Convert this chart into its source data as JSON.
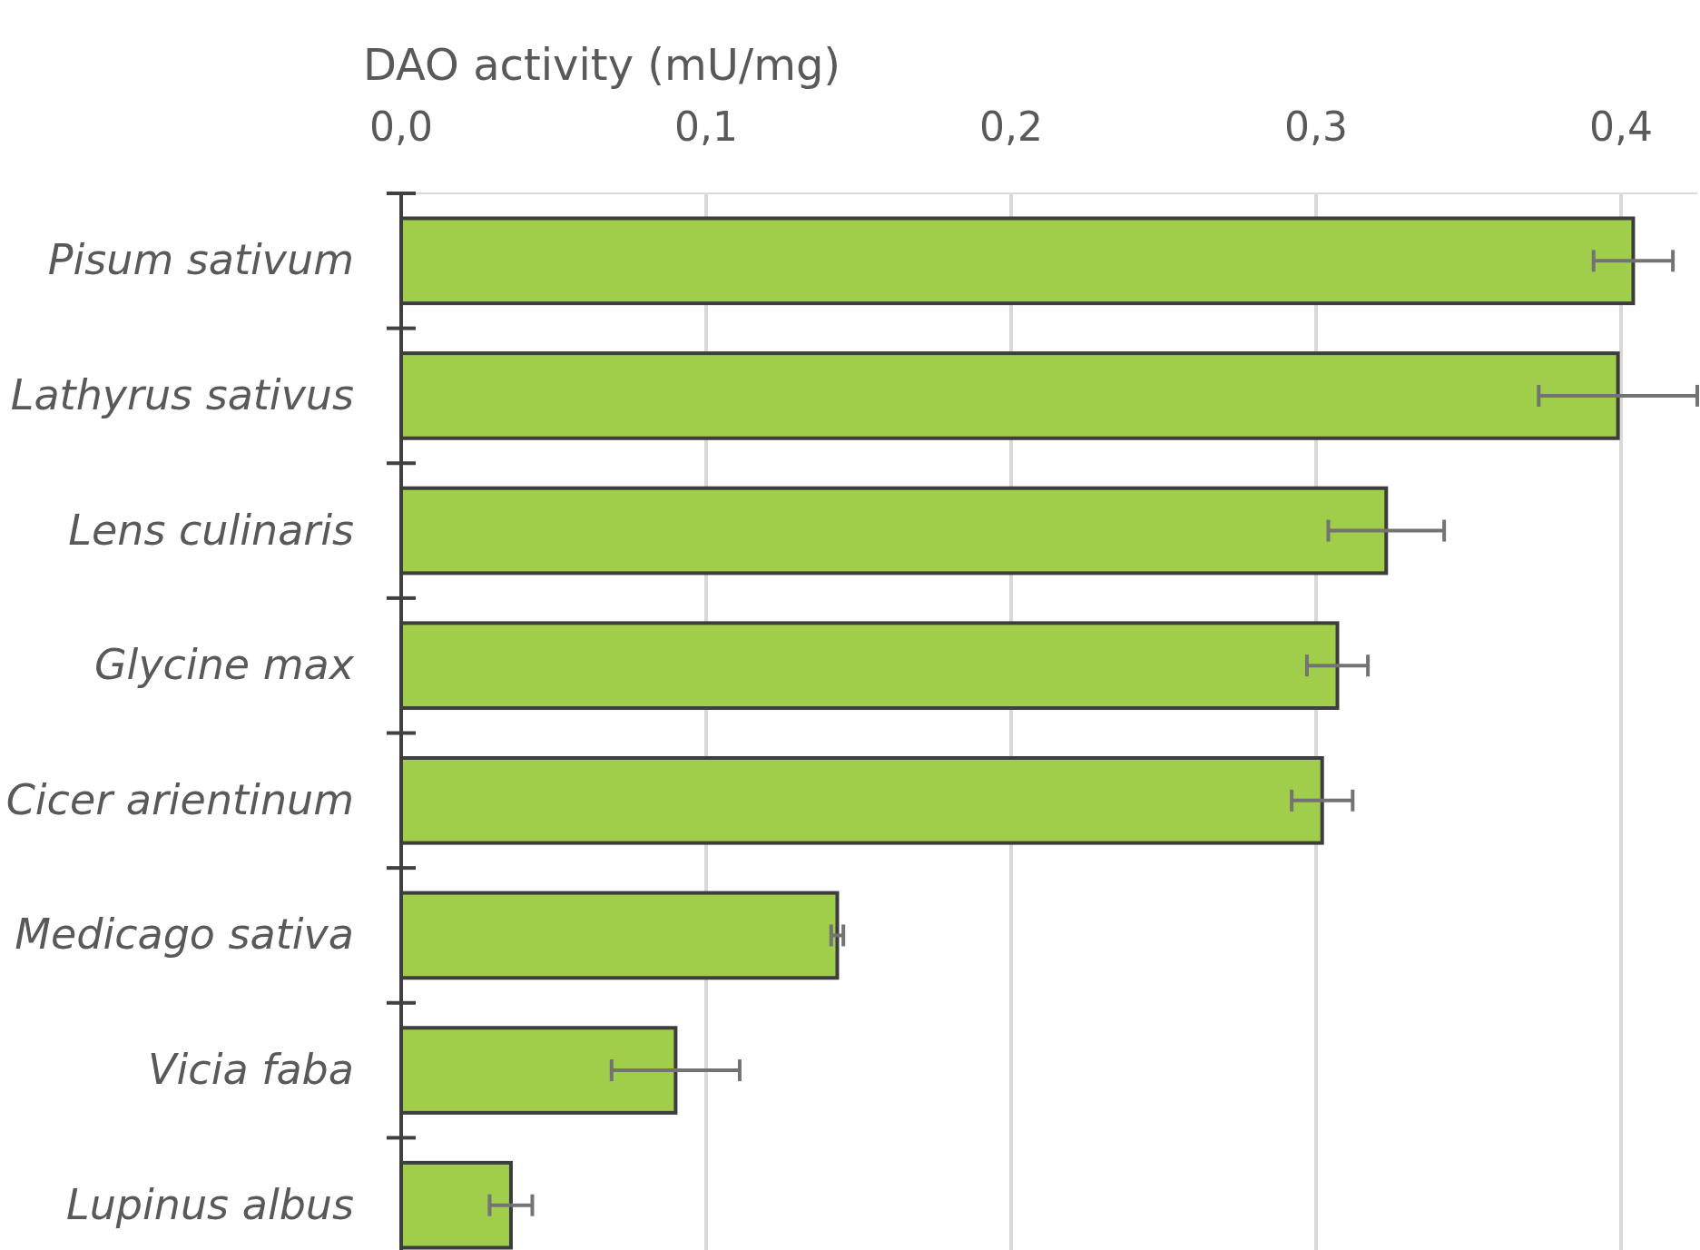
{
  "chart_data": {
    "type": "bar",
    "orientation": "horizontal",
    "xlabel": "DAO activity (mU/mg)",
    "categories": [
      "Pisum sativum",
      "Lathyrus sativus",
      "Lens culinaris",
      "Glycine max",
      "Cicer arientinum",
      "Medicago sativa",
      "Vicia faba",
      "Lupinus albus"
    ],
    "values": [
      0.404,
      0.399,
      0.323,
      0.307,
      0.302,
      0.143,
      0.09,
      0.036
    ],
    "errors": [
      0.013,
      0.026,
      0.019,
      0.01,
      0.01,
      0.002,
      0.021,
      0.007
    ],
    "color": "#a0cd4a",
    "xlim": [
      0,
      0.425
    ],
    "xticks": [
      {
        "value": 0,
        "label": "0,0"
      },
      {
        "value": 0.1,
        "label": "0,1"
      },
      {
        "value": 0.2,
        "label": "0,2"
      },
      {
        "value": 0.3,
        "label": "0,3"
      },
      {
        "value": 0.4,
        "label": "0,4"
      }
    ],
    "grid": "x"
  }
}
